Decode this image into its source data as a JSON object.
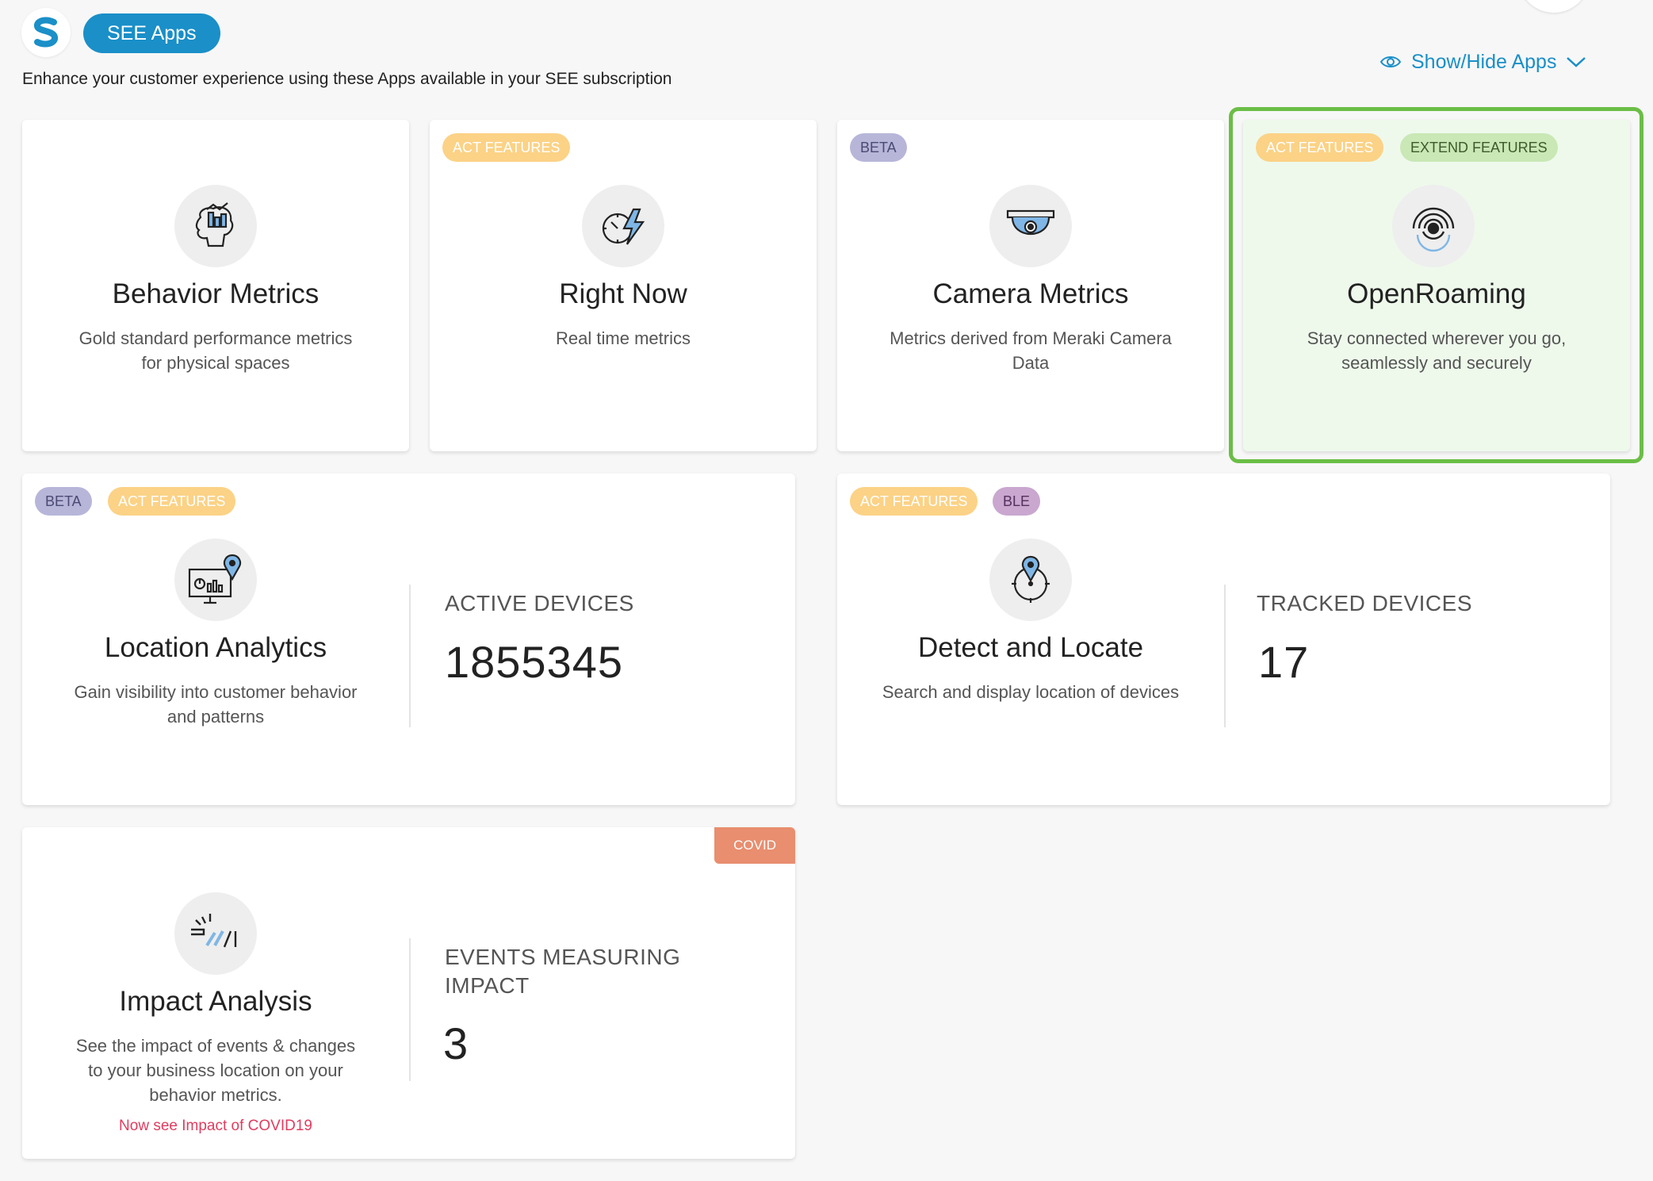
{
  "header": {
    "app_button_label": "SEE Apps",
    "subtitle": "Enhance your customer experience using these Apps available in your SEE subscription",
    "show_hide_label": "Show/Hide Apps"
  },
  "colors": {
    "accent_blue": "#1a8fc8",
    "act_badge": "#fbd286",
    "beta_badge": "#b7b6d9",
    "extend_badge": "#c9e8b5",
    "ble_badge": "#c9a7cf",
    "covid_badge": "#e98e6f",
    "highlight_border": "#6bbe46",
    "covid_link": "#e13c5f"
  },
  "apps": {
    "behavior": {
      "title": "Behavior Metrics",
      "desc_line1": "Gold standard performance metrics",
      "desc_line2": "for physical spaces",
      "icon": "brain-chart-icon"
    },
    "right_now": {
      "badge_act": "ACT FEATURES",
      "title": "Right Now",
      "desc_line1": "Real time metrics",
      "icon": "clock-bolt-icon"
    },
    "camera": {
      "badge_beta": "BETA",
      "title": "Camera Metrics",
      "desc_line1": "Metrics derived from Meraki Camera",
      "desc_line2": "Data",
      "icon": "dome-camera-icon"
    },
    "openroaming": {
      "badge_act": "ACT FEATURES",
      "badge_extend": "EXTEND FEATURES",
      "title": "OpenRoaming",
      "desc_line1": "Stay connected wherever you go,",
      "desc_line2": "seamlessly and securely",
      "icon": "wireless-signal-icon"
    },
    "location": {
      "badge_beta": "BETA",
      "badge_act": "ACT FEATURES",
      "title": "Location Analytics",
      "desc_line1": "Gain visibility into customer behavior",
      "desc_line2": "and patterns",
      "metric_label": "ACTIVE DEVICES",
      "metric_value": "1855345",
      "icon": "monitor-pin-icon"
    },
    "detect": {
      "badge_act": "ACT FEATURES",
      "badge_ble": "BLE",
      "title": "Detect and Locate",
      "desc_line1": "Search and display location of devices",
      "metric_label": "TRACKED DEVICES",
      "metric_value": "17",
      "icon": "crosshair-pin-icon"
    },
    "impact": {
      "badge_covid": "COVID",
      "title": "Impact Analysis",
      "desc_line1": "See the impact of events & changes",
      "desc_line2": "to your business location on your",
      "desc_line3": "behavior metrics.",
      "covid_link": "Now see Impact of COVID19",
      "metric_label_line1": "EVENTS MEASURING",
      "metric_label_line2": "IMPACT",
      "metric_value": "3",
      "icon": "impact-bars-icon"
    }
  }
}
